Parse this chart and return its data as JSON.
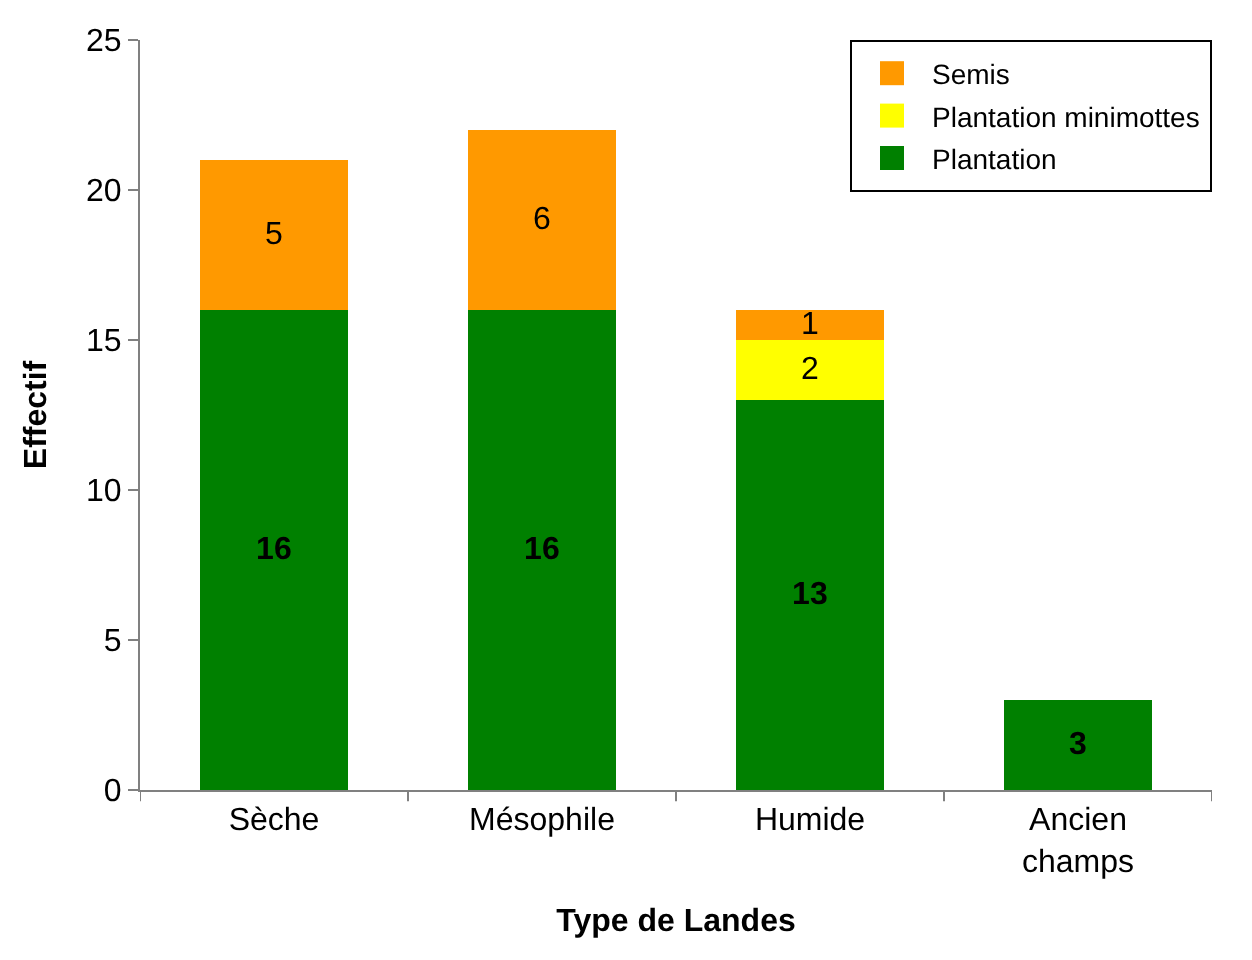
{
  "chart_data": {
    "type": "bar",
    "stacked": true,
    "xlabel": "Type de Landes",
    "ylabel": "Effectif",
    "categories": [
      "Sèche",
      "Mésophile",
      "Humide",
      "Ancien champs"
    ],
    "series": [
      {
        "name": "Plantation",
        "color": "#008000",
        "values": [
          16,
          16,
          13,
          3
        ]
      },
      {
        "name": "Plantation minimottes",
        "color": "#ffff00",
        "values": [
          null,
          null,
          2,
          null
        ]
      },
      {
        "name": "Semis",
        "color": "#ff9900",
        "values": [
          5,
          6,
          1,
          null
        ]
      }
    ],
    "ylim": [
      0,
      25
    ],
    "yticks": [
      0,
      5,
      10,
      15,
      20,
      25
    ],
    "data_labels": true,
    "legend": "top right"
  }
}
